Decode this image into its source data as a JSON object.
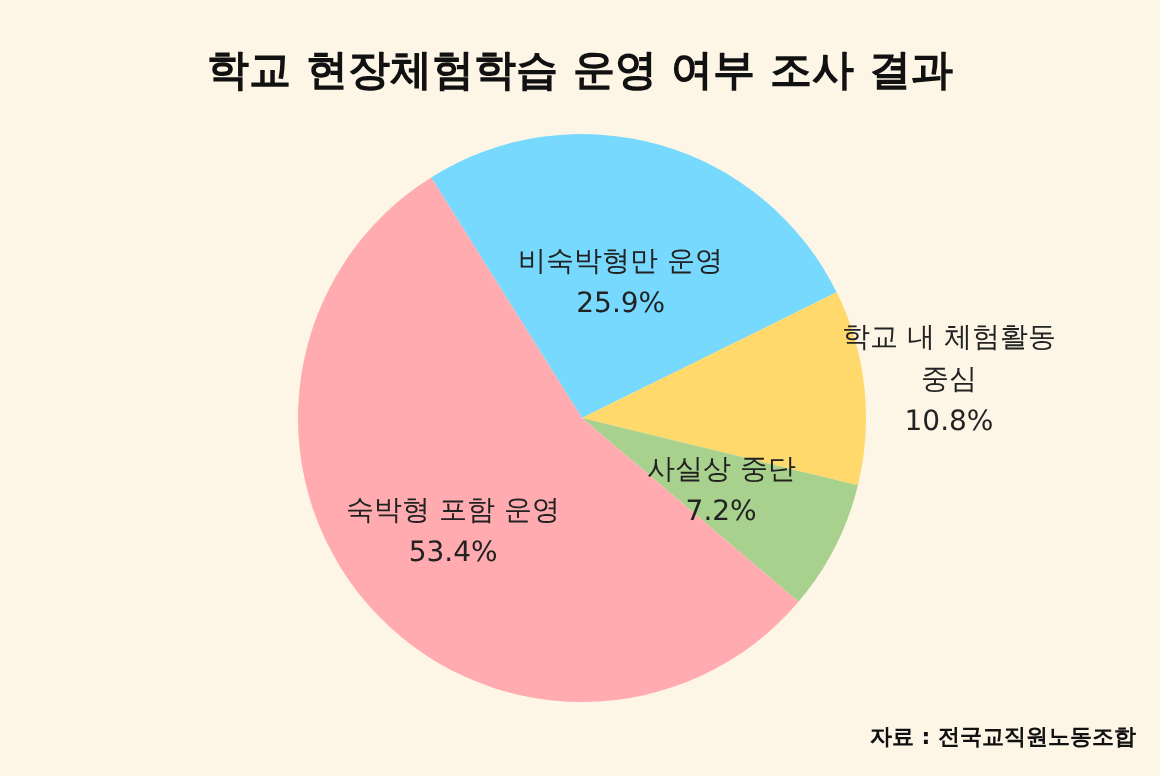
{
  "chart_data": {
    "type": "pie",
    "title": "학교 현장체험학습 운영 여부 조사 결과",
    "categories": [
      "비숙박형만 운영",
      "학교 내 체험활동\n중심",
      "사실상 중단",
      "숙박형 포함 운영"
    ],
    "values": [
      25.9,
      10.8,
      7.2,
      53.4
    ],
    "colors": [
      "#77d9fd",
      "#ffd96b",
      "#a9d18e",
      "#ffabaf"
    ],
    "value_labels": [
      "25.9%",
      "10.8%",
      "7.2%",
      "53.4%"
    ],
    "annotations": [
      "자료 : 전국교직원노동조합"
    ]
  }
}
